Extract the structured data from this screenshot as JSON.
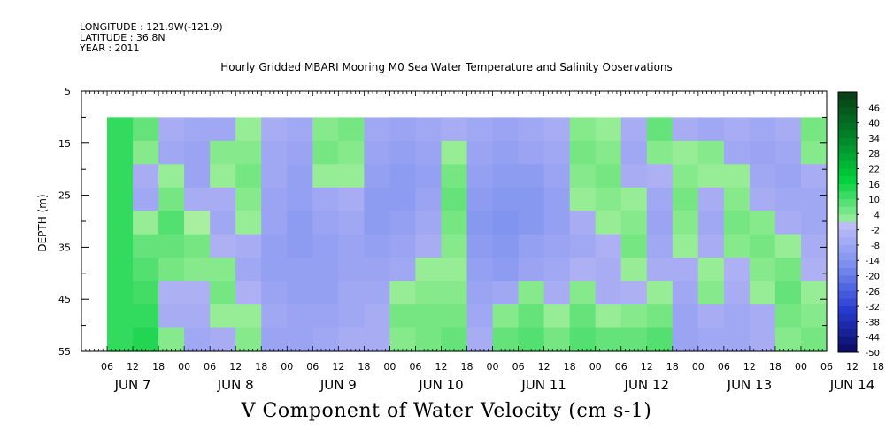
{
  "header": {
    "longitude": "LONGITUDE : 121.9W(-121.9)",
    "latitude": "LATITUDE : 36.8N",
    "year": "YEAR : 2011"
  },
  "chart_data": {
    "type": "heatmap",
    "title": "Hourly Gridded MBARI Mooring M0 Sea Water Temperature and Salinity Observations",
    "xlabel": "V Component of Water Velocity (cm s-1)",
    "ylabel": "DEPTH (m)",
    "y_ticks": [
      "5",
      "15",
      "25",
      "35",
      "45",
      "55"
    ],
    "y_range": [
      5,
      55
    ],
    "y_inverted": true,
    "x_hour_ticks": [
      "06",
      "12",
      "18",
      "00",
      "06",
      "12",
      "18",
      "00",
      "06",
      "12",
      "18",
      "00",
      "06",
      "12",
      "18",
      "00",
      "06",
      "12",
      "18",
      "00",
      "06",
      "12",
      "18",
      "00",
      "06",
      "12",
      "18",
      "00",
      "06",
      "12",
      "18",
      "00"
    ],
    "x_day_labels": [
      "JUN  7",
      "JUN  8",
      "JUN  9",
      "JUN 10",
      "JUN 11",
      "JUN 12",
      "JUN 13",
      "JUN 14"
    ],
    "data_depth_range": [
      10,
      55
    ],
    "colorbar_labels": [
      "46",
      "40",
      "34",
      "28",
      "22",
      "16",
      "10",
      "4",
      "-2",
      "-8",
      "-14",
      "-20",
      "-26",
      "-32",
      "-38",
      "-44",
      "-50"
    ],
    "colorbar_range": [
      -50,
      52
    ],
    "colors": {
      "positive_light": "#a8f0a0",
      "positive_strong": "#00d040",
      "negative_light": "#b4b4f4",
      "negative_strong": "#7a90f0"
    },
    "velocity_by_day_segment": [
      {
        "period": "JUN 7 00-06",
        "values": [
          14,
          14,
          14,
          14,
          14,
          14,
          14,
          14,
          14,
          14
        ]
      },
      {
        "period": "JUN 7 12",
        "values": [
          8,
          4,
          -4,
          -6,
          2,
          8,
          10,
          12,
          14,
          16
        ]
      },
      {
        "period": "JUN 7 18",
        "values": [
          -4,
          -6,
          2,
          6,
          10,
          8,
          6,
          -2,
          -4,
          4
        ]
      },
      {
        "period": "JUN 8 00",
        "values": [
          -6,
          -8,
          -8,
          -4,
          0,
          6,
          4,
          -2,
          -4,
          -6
        ]
      },
      {
        "period": "JUN 8 06",
        "values": [
          -6,
          4,
          2,
          -4,
          -6,
          -2,
          4,
          6,
          2,
          -4
        ]
      },
      {
        "period": "JUN 8 12",
        "values": [
          2,
          4,
          6,
          4,
          2,
          -4,
          -6,
          -2,
          2,
          4
        ]
      },
      {
        "period": "JUN 8 18",
        "values": [
          -4,
          -6,
          -6,
          -8,
          -8,
          -10,
          -10,
          -8,
          -6,
          -8
        ]
      },
      {
        "period": "JUN 9 00",
        "values": [
          -6,
          -8,
          -10,
          -10,
          -12,
          -12,
          -10,
          -10,
          -8,
          -8
        ]
      },
      {
        "period": "JUN 9 06",
        "values": [
          4,
          6,
          2,
          -6,
          -8,
          -10,
          -10,
          -10,
          -8,
          -6
        ]
      },
      {
        "period": "JUN 9 12",
        "values": [
          6,
          4,
          2,
          -4,
          -6,
          -8,
          -8,
          -6,
          -6,
          -4
        ]
      },
      {
        "period": "JUN 9 18",
        "values": [
          -6,
          -8,
          -10,
          -12,
          -12,
          -10,
          -8,
          -6,
          -4,
          -4
        ]
      },
      {
        "period": "JUN 10 00",
        "values": [
          -8,
          -10,
          -12,
          -12,
          -10,
          -8,
          -6,
          2,
          6,
          4
        ]
      },
      {
        "period": "JUN 10 06",
        "values": [
          -6,
          -8,
          -10,
          -8,
          -6,
          -4,
          2,
          4,
          6,
          6
        ]
      },
      {
        "period": "JUN 10 12",
        "values": [
          -4,
          2,
          6,
          8,
          6,
          4,
          2,
          4,
          6,
          8
        ]
      },
      {
        "period": "JUN 10 18",
        "values": [
          -6,
          -8,
          -10,
          -12,
          -14,
          -12,
          -10,
          -8,
          -6,
          -4
        ]
      },
      {
        "period": "JUN 11 00",
        "values": [
          -8,
          -10,
          -12,
          -14,
          -16,
          -14,
          -12,
          -6,
          4,
          8
        ]
      },
      {
        "period": "JUN 11 06",
        "values": [
          -6,
          -8,
          -12,
          -14,
          -14,
          -10,
          -8,
          4,
          8,
          10
        ]
      },
      {
        "period": "JUN 11 12",
        "values": [
          -4,
          -6,
          -8,
          -10,
          -10,
          -8,
          -6,
          -4,
          2,
          6
        ]
      },
      {
        "period": "JUN 11 18",
        "values": [
          4,
          6,
          4,
          2,
          -4,
          -6,
          -2,
          4,
          8,
          10
        ]
      },
      {
        "period": "JUN 12 00",
        "values": [
          2,
          4,
          6,
          4,
          2,
          -2,
          -4,
          -4,
          2,
          8
        ]
      },
      {
        "period": "JUN 12 06",
        "values": [
          -4,
          -6,
          -4,
          2,
          4,
          6,
          2,
          -2,
          4,
          8
        ]
      },
      {
        "period": "JUN 12 12",
        "values": [
          8,
          4,
          -2,
          -6,
          -8,
          -6,
          -4,
          2,
          6,
          10
        ]
      },
      {
        "period": "JUN 12 18",
        "values": [
          -4,
          2,
          4,
          6,
          4,
          2,
          -4,
          -6,
          -8,
          -8
        ]
      },
      {
        "period": "JUN 13 00",
        "values": [
          -6,
          4,
          2,
          -4,
          -6,
          -4,
          2,
          4,
          -4,
          -6
        ]
      },
      {
        "period": "JUN 13 06",
        "values": [
          -4,
          -6,
          2,
          4,
          6,
          4,
          -2,
          -4,
          -6,
          -6
        ]
      },
      {
        "period": "JUN 13 12",
        "values": [
          -6,
          -8,
          -6,
          -4,
          4,
          6,
          4,
          2,
          -4,
          -4
        ]
      },
      {
        "period": "JUN 13 18",
        "values": [
          -4,
          -6,
          -8,
          -6,
          -4,
          2,
          6,
          8,
          6,
          4
        ]
      },
      {
        "period": "JUN 14 00",
        "values": [
          6,
          4,
          -4,
          -6,
          -6,
          -4,
          -2,
          2,
          4,
          6
        ]
      }
    ]
  }
}
